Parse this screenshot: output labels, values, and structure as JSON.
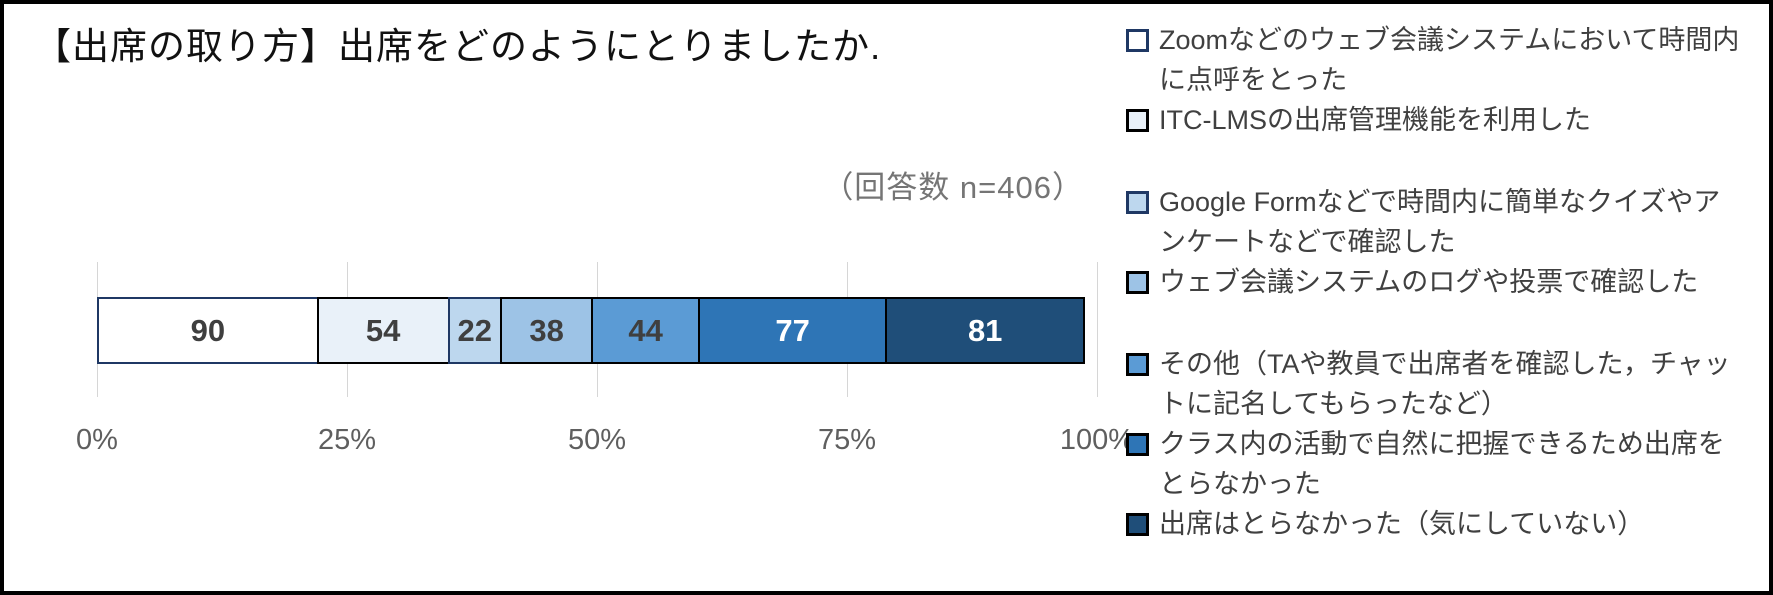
{
  "title": "【出席の取り方】出席をどのようにとりましたか.",
  "annotation": "（回答数 n=406）",
  "colors": {
    "frame_border": "#000000",
    "background": "#ffffff",
    "gridline": "#d6d6d6",
    "axis_text": "#5f5f5f",
    "annotation_text": "#757575",
    "legend_text": "#404040",
    "title_text": "#111111"
  },
  "chart_data": {
    "type": "bar",
    "orientation": "horizontal",
    "stacked": true,
    "grid": true,
    "legend_position": "right",
    "title": "【出席の取り方】出席をどのようにとりましたか.",
    "subtitle": "（回答数 n=406）",
    "n_total": 406,
    "categories": [
      "出席の取り方"
    ],
    "xlabel": "",
    "ylabel": "",
    "x_axis": {
      "min_pct": 0,
      "max_pct": 100,
      "tick_labels": [
        "0%",
        "25%",
        "50%",
        "75%",
        "100%"
      ],
      "tick_pcts": [
        0,
        25,
        50,
        75,
        100
      ]
    },
    "series": [
      {
        "name": "Zoomなどのウェブ会議システムにおいて時間内に点呼をとった",
        "value": 90,
        "fill": "#FFFFFF",
        "border": "#1F3864",
        "label_color": "#3F3F3F",
        "legend_lines": [
          "Zoomなどのウェブ会議システムにおいて時間内",
          "に点呼をとった"
        ]
      },
      {
        "name": "ITC-LMSの出席管理機能を利用した",
        "value": 54,
        "fill": "#E9F1F9",
        "border": "#000000",
        "label_color": "#3F3F3F",
        "legend_lines": [
          "ITC-LMSの出席管理機能を利用した"
        ]
      },
      {
        "name": "Google Formなどで時間内に簡単なクイズやアンケートなどで確認した",
        "value": 22,
        "fill": "#BDD7EE",
        "border": "#1F3864",
        "label_color": "#3F3F3F",
        "legend_lines": [
          "Google Formなどで時間内に簡単なクイズやア",
          "ンケートなどで確認した"
        ]
      },
      {
        "name": "ウェブ会議システムのログや投票で確認した",
        "value": 38,
        "fill": "#9DC3E6",
        "border": "#000000",
        "label_color": "#3F3F3F",
        "legend_lines": [
          "ウェブ会議システムのログや投票で確認した"
        ]
      },
      {
        "name": "その他（TAや教員で出席者を確認した，チャットに記名してもらったなど）",
        "value": 44,
        "fill": "#5B9BD5",
        "border": "#000000",
        "label_color": "#3F3F3F",
        "legend_lines": [
          "その他（TAや教員で出席者を確認した，チャッ",
          "トに記名してもらったなど）"
        ]
      },
      {
        "name": "クラス内の活動で自然に把握できるため出席をとらなかった",
        "value": 77,
        "fill": "#2E75B6",
        "border": "#000000",
        "label_color": "#FFFFFF",
        "legend_lines": [
          "クラス内の活動で自然に把握できるため出席を",
          "とらなかった"
        ]
      },
      {
        "name": "出席はとらなかった（気にしていない）",
        "value": 81,
        "fill": "#1F4E79",
        "border": "#000000",
        "label_color": "#FFFFFF",
        "legend_lines": [
          "出席はとらなかった（気にしていない）"
        ]
      }
    ],
    "legend_groups": [
      [
        0,
        1
      ],
      [
        2,
        3
      ],
      [
        4,
        5,
        6
      ]
    ]
  }
}
